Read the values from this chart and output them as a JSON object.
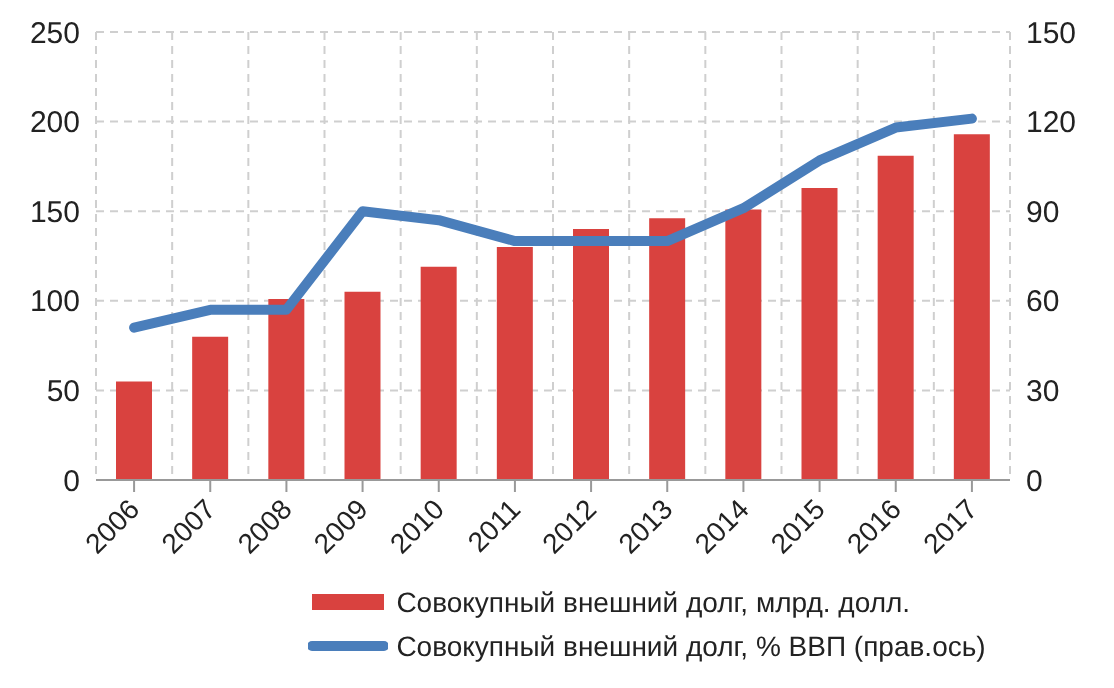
{
  "chart_data": {
    "type": "bar",
    "categories": [
      "2006",
      "2007",
      "2008",
      "2009",
      "2010",
      "2011",
      "2012",
      "2013",
      "2014",
      "2015",
      "2016",
      "2017"
    ],
    "series": [
      {
        "name": "Совокупный внешний долг, млрд. долл.",
        "color": "#d9423f",
        "values": [
          55,
          80,
          101,
          105,
          119,
          130,
          140,
          146,
          151,
          163,
          181,
          193
        ]
      },
      {
        "name": "Совокупный внешний долг, % ВВП (прав.ось)",
        "type": "line",
        "axis": "y2",
        "color": "#4a7ebb",
        "values": [
          51,
          57,
          57,
          90,
          87,
          80,
          80,
          80,
          91,
          107,
          118,
          121
        ]
      }
    ],
    "ylim": [
      0,
      250
    ],
    "yticks": [
      0,
      50,
      100,
      150,
      200,
      250
    ],
    "y2lim": [
      0,
      150
    ],
    "y2ticks": [
      0,
      30,
      60,
      90,
      120,
      150
    ],
    "grid": true,
    "legend": "bottom",
    "marker": "none",
    "line_style": "solid"
  }
}
